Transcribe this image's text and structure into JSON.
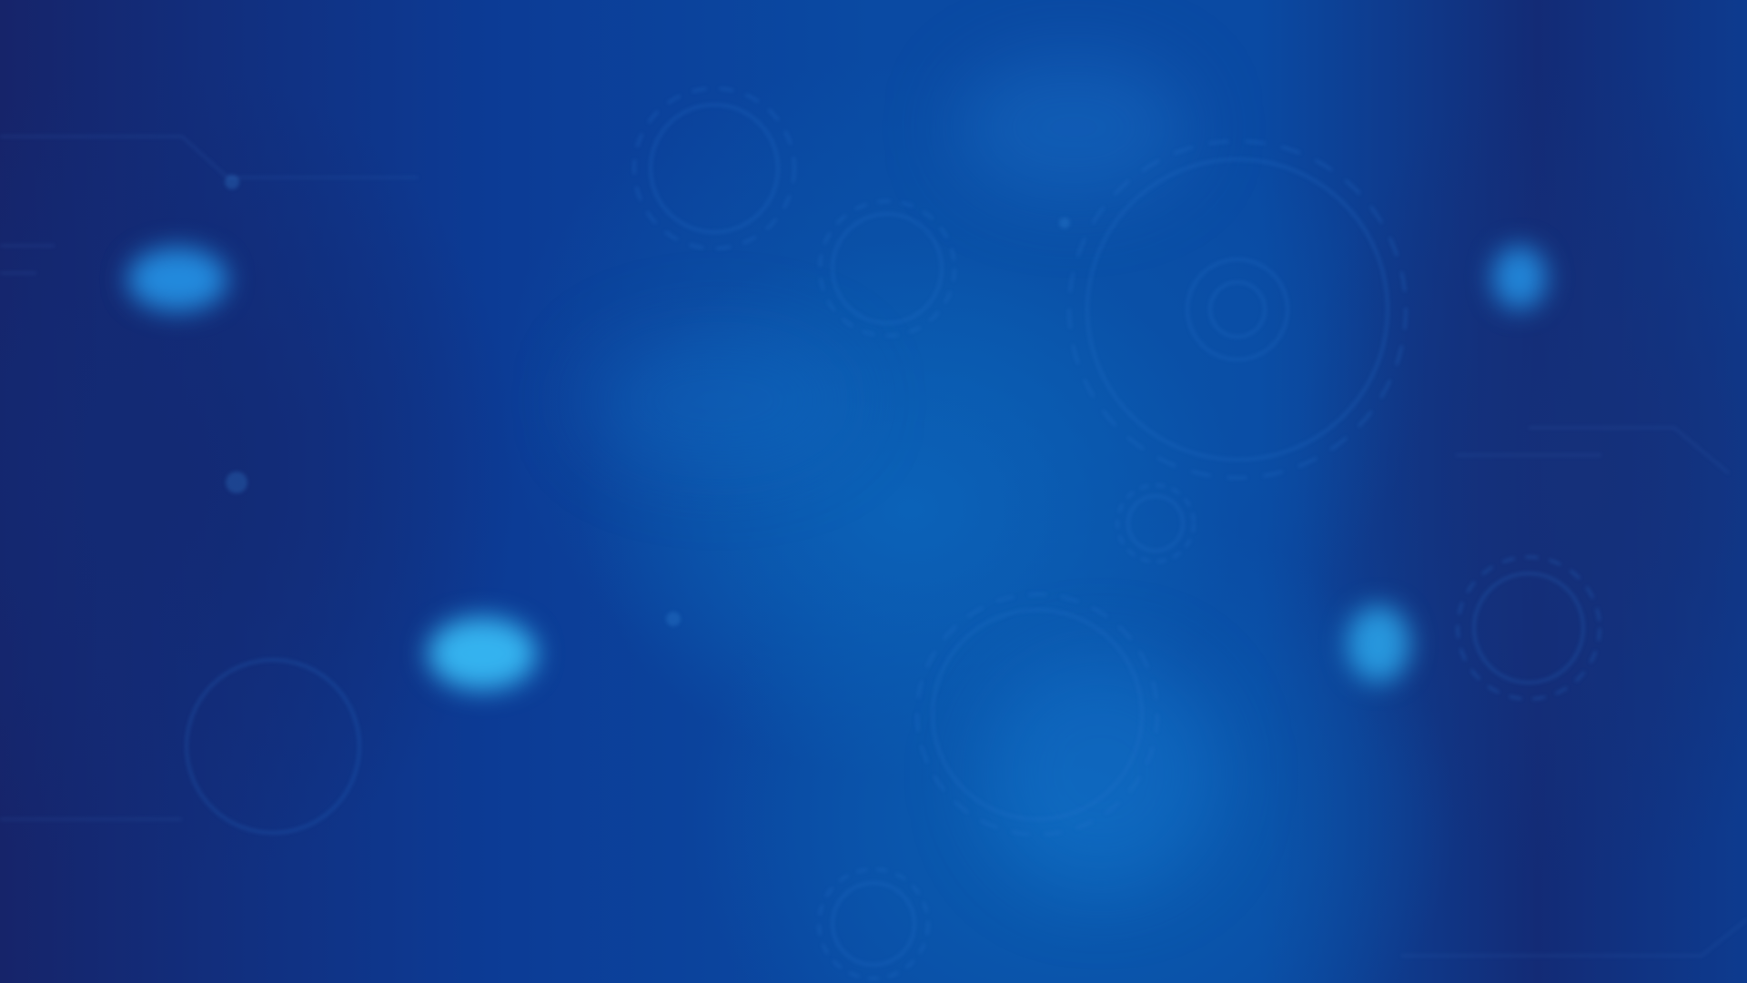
{
  "screen": {
    "description_free": true
  },
  "colors": {
    "background_dark": "#16246a",
    "background_mid": "#0a4aa3",
    "glow": "#28aaff",
    "gear_line": "#2b78d0"
  },
  "decorations": {
    "icons": [
      "gear-icon",
      "circuit-line-icon"
    ]
  }
}
